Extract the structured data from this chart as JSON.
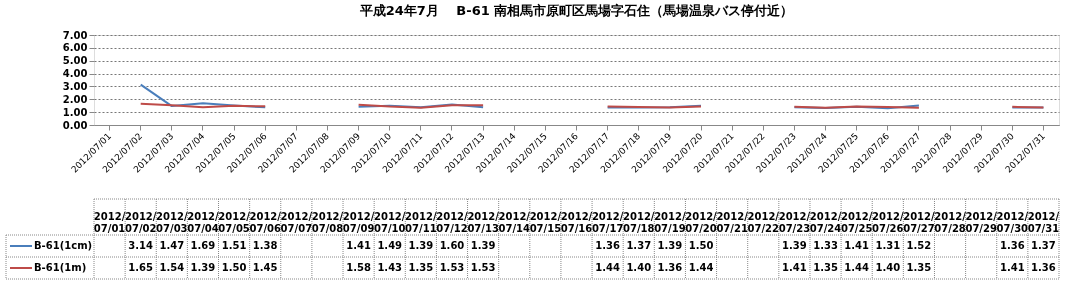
{
  "chart_data": {
    "type": "line",
    "title": "平成24年7月　 B-61 南相馬市原町区馬場字石住（馬場温泉バス停付近）",
    "categories": [
      "2012/07/01",
      "2012/07/02",
      "2012/07/03",
      "2012/07/04",
      "2012/07/05",
      "2012/07/06",
      "2012/07/07",
      "2012/07/08",
      "2012/07/09",
      "2012/07/10",
      "2012/07/11",
      "2012/07/12",
      "2012/07/13",
      "2012/07/14",
      "2012/07/15",
      "2012/07/16",
      "2012/07/17",
      "2012/07/18",
      "2012/07/19",
      "2012/07/20",
      "2012/07/21",
      "2012/07/22",
      "2012/07/23",
      "2012/07/24",
      "2012/07/25",
      "2012/07/26",
      "2012/07/27",
      "2012/07/28",
      "2012/07/29",
      "2012/07/30",
      "2012/07/31"
    ],
    "series": [
      {
        "name": "B-61(1cm)",
        "color": "#4a7ebb",
        "values": [
          null,
          3.14,
          1.47,
          1.69,
          1.51,
          1.38,
          null,
          null,
          1.41,
          1.49,
          1.39,
          1.6,
          1.39,
          null,
          null,
          null,
          1.36,
          1.37,
          1.39,
          1.5,
          null,
          null,
          1.39,
          1.33,
          1.41,
          1.31,
          1.52,
          null,
          null,
          1.36,
          1.37
        ],
        "value_labels": [
          null,
          "3.14",
          "1.47",
          "1.69",
          "1.51",
          "1.38",
          null,
          null,
          "1.41",
          "1.49",
          "1.39",
          "1.60",
          "1.39",
          null,
          null,
          null,
          "1.36",
          "1.37",
          "1.39",
          "1.50",
          null,
          null,
          "1.39",
          "1.33",
          "1.41",
          "1.31",
          "1.52",
          null,
          null,
          "1.36",
          "1.37"
        ]
      },
      {
        "name": "B-61(1m)",
        "color": "#be4b48",
        "values": [
          null,
          1.65,
          1.54,
          1.39,
          1.5,
          1.45,
          null,
          null,
          1.58,
          1.43,
          1.35,
          1.53,
          1.53,
          null,
          null,
          null,
          1.44,
          1.4,
          1.36,
          1.44,
          null,
          null,
          1.41,
          1.35,
          1.44,
          1.4,
          1.35,
          null,
          null,
          1.41,
          1.36
        ],
        "value_labels": [
          null,
          "1.65",
          "1.54",
          "1.39",
          "1.50",
          "1.45",
          null,
          null,
          "1.58",
          "1.43",
          "1.35",
          "1.53",
          "1.53",
          null,
          null,
          null,
          "1.44",
          "1.40",
          "1.36",
          "1.44",
          null,
          null,
          "1.41",
          "1.35",
          "1.44",
          "1.40",
          "1.35",
          null,
          null,
          "1.41",
          "1.36"
        ]
      }
    ],
    "ylim": [
      0,
      7
    ],
    "yticks": [
      {
        "value": 0,
        "label": "0.00"
      },
      {
        "value": 1,
        "label": "1.00"
      },
      {
        "value": 2,
        "label": "2.00"
      },
      {
        "value": 3,
        "label": "3.00"
      },
      {
        "value": 4,
        "label": "4.00"
      },
      {
        "value": 5,
        "label": "5.00"
      },
      {
        "value": 6,
        "label": "6.00"
      },
      {
        "value": 7,
        "label": "7.00"
      }
    ],
    "grid": "y",
    "legend": "bottom",
    "marker": "none",
    "line_style": "solid"
  }
}
